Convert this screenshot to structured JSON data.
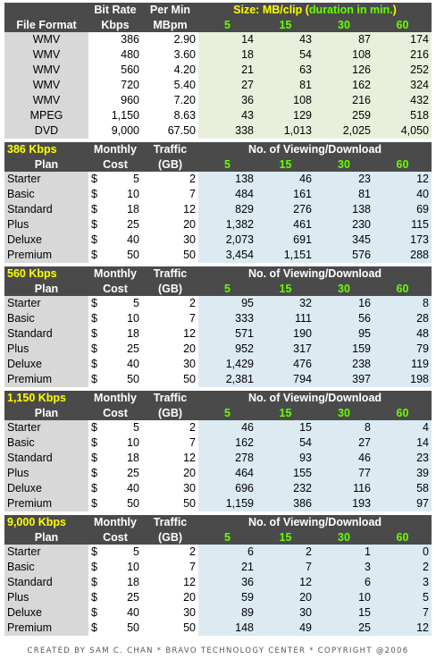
{
  "format_table": {
    "headers": {
      "file_format": "File Format",
      "bit_rate_1": "Bit Rate",
      "bit_rate_2": "Kbps",
      "per_min_1": "Per Min",
      "per_min_2": "MBpm",
      "size_label": "Size:",
      "size_unit": "MB/clip (",
      "duration": "duration in min.",
      "close_paren": ")",
      "durations": [
        "5",
        "15",
        "30",
        "60"
      ]
    },
    "rows": [
      {
        "format": "WMV",
        "kbps": "386",
        "mbpm": "2.90",
        "v": [
          "14",
          "43",
          "87",
          "174"
        ]
      },
      {
        "format": "WMV",
        "kbps": "480",
        "mbpm": "3.60",
        "v": [
          "18",
          "54",
          "108",
          "216"
        ]
      },
      {
        "format": "WMV",
        "kbps": "560",
        "mbpm": "4.20",
        "v": [
          "21",
          "63",
          "126",
          "252"
        ]
      },
      {
        "format": "WMV",
        "kbps": "720",
        "mbpm": "5.40",
        "v": [
          "27",
          "81",
          "162",
          "324"
        ]
      },
      {
        "format": "WMV",
        "kbps": "960",
        "mbpm": "7.20",
        "v": [
          "36",
          "108",
          "216",
          "432"
        ]
      },
      {
        "format": "MPEG",
        "kbps": "1,150",
        "mbpm": "8.63",
        "v": [
          "43",
          "129",
          "259",
          "518"
        ]
      },
      {
        "format": "DVD",
        "kbps": "9,000",
        "mbpm": "67.50",
        "v": [
          "338",
          "1,013",
          "2,025",
          "4,050"
        ]
      }
    ]
  },
  "plan_header": {
    "plan": "Plan",
    "monthly_1": "Monthly",
    "monthly_2": "Cost",
    "traffic_1": "Traffic",
    "traffic_2": "(GB)",
    "viewing": "No. of Viewing/Download",
    "durations": [
      "5",
      "15",
      "30",
      "60"
    ],
    "currency": "$"
  },
  "sections": [
    {
      "rate": "386 Kbps",
      "rows": [
        {
          "plan": "Starter",
          "cost": "5",
          "gb": "2",
          "v": [
            "138",
            "46",
            "23",
            "12"
          ]
        },
        {
          "plan": "Basic",
          "cost": "10",
          "gb": "7",
          "v": [
            "484",
            "161",
            "81",
            "40"
          ]
        },
        {
          "plan": "Standard",
          "cost": "18",
          "gb": "12",
          "v": [
            "829",
            "276",
            "138",
            "69"
          ]
        },
        {
          "plan": "Plus",
          "cost": "25",
          "gb": "20",
          "v": [
            "1,382",
            "461",
            "230",
            "115"
          ]
        },
        {
          "plan": "Deluxe",
          "cost": "40",
          "gb": "30",
          "v": [
            "2,073",
            "691",
            "345",
            "173"
          ]
        },
        {
          "plan": "Premium",
          "cost": "50",
          "gb": "50",
          "v": [
            "3,454",
            "1,151",
            "576",
            "288"
          ]
        }
      ]
    },
    {
      "rate": "560 Kbps",
      "rows": [
        {
          "plan": "Starter",
          "cost": "5",
          "gb": "2",
          "v": [
            "95",
            "32",
            "16",
            "8"
          ]
        },
        {
          "plan": "Basic",
          "cost": "10",
          "gb": "7",
          "v": [
            "333",
            "111",
            "56",
            "28"
          ]
        },
        {
          "plan": "Standard",
          "cost": "18",
          "gb": "12",
          "v": [
            "571",
            "190",
            "95",
            "48"
          ]
        },
        {
          "plan": "Plus",
          "cost": "25",
          "gb": "20",
          "v": [
            "952",
            "317",
            "159",
            "79"
          ]
        },
        {
          "plan": "Deluxe",
          "cost": "40",
          "gb": "30",
          "v": [
            "1,429",
            "476",
            "238",
            "119"
          ]
        },
        {
          "plan": "Premium",
          "cost": "50",
          "gb": "50",
          "v": [
            "2,381",
            "794",
            "397",
            "198"
          ]
        }
      ]
    },
    {
      "rate": "1,150 Kbps",
      "rows": [
        {
          "plan": "Starter",
          "cost": "5",
          "gb": "2",
          "v": [
            "46",
            "15",
            "8",
            "4"
          ]
        },
        {
          "plan": "Basic",
          "cost": "10",
          "gb": "7",
          "v": [
            "162",
            "54",
            "27",
            "14"
          ]
        },
        {
          "plan": "Standard",
          "cost": "18",
          "gb": "12",
          "v": [
            "278",
            "93",
            "46",
            "23"
          ]
        },
        {
          "plan": "Plus",
          "cost": "25",
          "gb": "20",
          "v": [
            "464",
            "155",
            "77",
            "39"
          ]
        },
        {
          "plan": "Deluxe",
          "cost": "40",
          "gb": "30",
          "v": [
            "696",
            "232",
            "116",
            "58"
          ]
        },
        {
          "plan": "Premium",
          "cost": "50",
          "gb": "50",
          "v": [
            "1,159",
            "386",
            "193",
            "97"
          ]
        }
      ]
    },
    {
      "rate": "9,000 Kbps",
      "rows": [
        {
          "plan": "Starter",
          "cost": "5",
          "gb": "2",
          "v": [
            "6",
            "2",
            "1",
            "0"
          ]
        },
        {
          "plan": "Basic",
          "cost": "10",
          "gb": "7",
          "v": [
            "21",
            "7",
            "3",
            "2"
          ]
        },
        {
          "plan": "Standard",
          "cost": "18",
          "gb": "12",
          "v": [
            "36",
            "12",
            "6",
            "3"
          ]
        },
        {
          "plan": "Plus",
          "cost": "25",
          "gb": "20",
          "v": [
            "59",
            "20",
            "10",
            "5"
          ]
        },
        {
          "plan": "Deluxe",
          "cost": "40",
          "gb": "30",
          "v": [
            "89",
            "30",
            "15",
            "7"
          ]
        },
        {
          "plan": "Premium",
          "cost": "50",
          "gb": "50",
          "v": [
            "148",
            "49",
            "25",
            "12"
          ]
        }
      ]
    }
  ],
  "footer": "CREATED BY SAM C. CHAN * BRAVO TECHNOLOGY CENTER * COPYRIGHT @2006",
  "colors": {
    "header_bg": "#4a4a4a",
    "accent_green": "#66ff00",
    "accent_yellow": "#ffff00",
    "label_gray": "#d8d8d8",
    "value_blue": "#dceaf2",
    "value_green": "#e8f0dc"
  }
}
